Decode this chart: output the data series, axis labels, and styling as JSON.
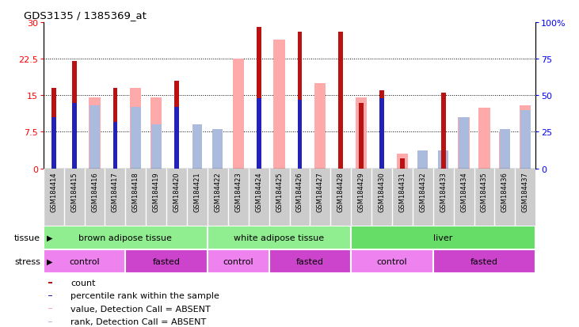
{
  "title": "GDS3135 / 1385369_at",
  "samples": [
    "GSM184414",
    "GSM184415",
    "GSM184416",
    "GSM184417",
    "GSM184418",
    "GSM184419",
    "GSM184420",
    "GSM184421",
    "GSM184422",
    "GSM184423",
    "GSM184424",
    "GSM184425",
    "GSM184426",
    "GSM184427",
    "GSM184428",
    "GSM184429",
    "GSM184430",
    "GSM184431",
    "GSM184432",
    "GSM184433",
    "GSM184434",
    "GSM184435",
    "GSM184436",
    "GSM184437"
  ],
  "red_bars": [
    16.5,
    22.0,
    0,
    16.5,
    0,
    0,
    18.0,
    0,
    0,
    0,
    29.0,
    0,
    28.0,
    0,
    28.0,
    13.5,
    16.0,
    2.0,
    0,
    15.5,
    0,
    0,
    0,
    0
  ],
  "blue_bars_pct": [
    35,
    45,
    0,
    32,
    0,
    0,
    42,
    0,
    0,
    0,
    48,
    0,
    47,
    0,
    0,
    0,
    48,
    0,
    0,
    0,
    0,
    0,
    0,
    0
  ],
  "pink_bars": [
    0,
    0,
    14.5,
    0,
    16.5,
    14.5,
    0,
    0,
    0,
    22.5,
    0,
    26.5,
    0,
    17.5,
    0,
    14.5,
    0,
    3.0,
    0,
    0,
    10.5,
    12.5,
    7.5,
    13.0
  ],
  "lightblue_pct": [
    0,
    0,
    43,
    0,
    42,
    30,
    0,
    30,
    27,
    0,
    0,
    0,
    0,
    0,
    0,
    0,
    0,
    0,
    12,
    12,
    35,
    0,
    27,
    40
  ],
  "tissue_groups": [
    {
      "label": "brown adipose tissue",
      "start": 0,
      "end": 8,
      "color": "#90EE90"
    },
    {
      "label": "white adipose tissue",
      "start": 8,
      "end": 15,
      "color": "#90EE90"
    },
    {
      "label": "liver",
      "start": 15,
      "end": 24,
      "color": "#66DD66"
    }
  ],
  "stress_groups": [
    {
      "label": "control",
      "start": 0,
      "end": 4,
      "color": "#EE82EE"
    },
    {
      "label": "fasted",
      "start": 4,
      "end": 8,
      "color": "#CC44CC"
    },
    {
      "label": "control",
      "start": 8,
      "end": 11,
      "color": "#EE82EE"
    },
    {
      "label": "fasted",
      "start": 11,
      "end": 15,
      "color": "#CC44CC"
    },
    {
      "label": "control",
      "start": 15,
      "end": 19,
      "color": "#EE82EE"
    },
    {
      "label": "fasted",
      "start": 19,
      "end": 24,
      "color": "#CC44CC"
    }
  ],
  "ylim_left": [
    0,
    30
  ],
  "ylim_right": [
    0,
    100
  ],
  "yticks_left": [
    0,
    7.5,
    15,
    22.5,
    30
  ],
  "yticks_right": [
    0,
    25,
    50,
    75,
    100
  ],
  "bar_color_red": "#BB1111",
  "bar_color_blue": "#2222BB",
  "bar_color_pink": "#FFAAAA",
  "bar_color_lightblue": "#AABBDD",
  "xticklabel_bg": "#CCCCCC"
}
